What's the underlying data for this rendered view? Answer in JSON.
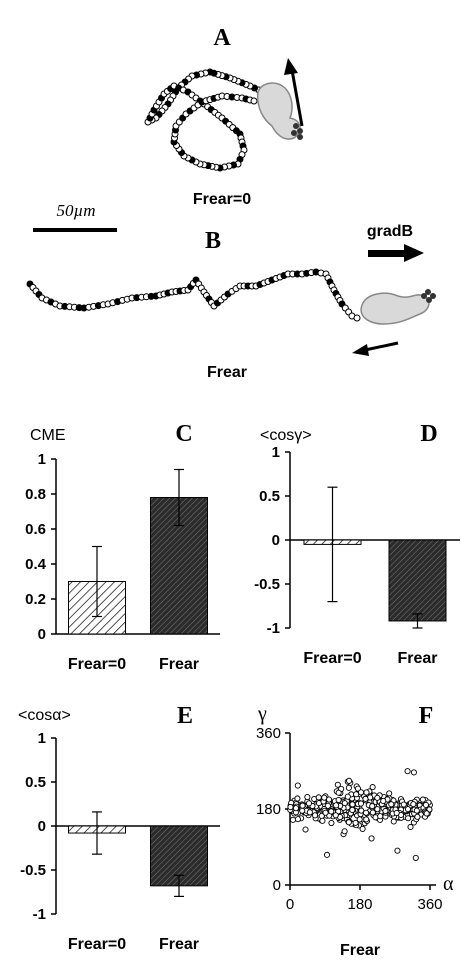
{
  "panel_a": {
    "letter": "A",
    "caption": "Frear=0"
  },
  "scale_bar": {
    "label": "50µm"
  },
  "panel_b": {
    "letter": "B",
    "caption": "Frear",
    "field_label": "gradB"
  },
  "colors": {
    "ink": "#000000",
    "cell_fill": "#d9d9d9",
    "bar_dark": "#262626",
    "bar_light": "#ffffff"
  },
  "chart_data": [
    {
      "panel": "C",
      "type": "bar",
      "ylabel": "CME",
      "categories": [
        "Frear=0",
        "Frear"
      ],
      "values": [
        0.3,
        0.78
      ],
      "errors": [
        0.2,
        0.16
      ],
      "ylim": [
        0,
        1
      ],
      "yticks": [
        "0",
        "0.2",
        "0.4",
        "0.6",
        "0.8",
        "1"
      ],
      "bar_styles": [
        "light-hatch",
        "dark-hatch"
      ]
    },
    {
      "panel": "D",
      "type": "bar",
      "ylabel": "<cosγ>",
      "categories": [
        "Frear=0",
        "Frear"
      ],
      "values": [
        -0.05,
        -0.92
      ],
      "errors": [
        0.65,
        0.08
      ],
      "ylim": [
        -1,
        1
      ],
      "yticks": [
        "1",
        "0.5",
        "0",
        "-0.5",
        "-1"
      ],
      "bar_styles": [
        "light-hatch",
        "dark-hatch"
      ]
    },
    {
      "panel": "E",
      "type": "bar",
      "ylabel": "<cosα>",
      "categories": [
        "Frear=0",
        "Frear"
      ],
      "values": [
        -0.08,
        -0.68
      ],
      "errors": [
        0.24,
        0.12
      ],
      "ylim": [
        -1,
        1
      ],
      "yticks": [
        "1",
        "0.5",
        "0",
        "-0.5",
        "-1"
      ],
      "bar_styles": [
        "light-hatch",
        "dark-hatch"
      ]
    },
    {
      "panel": "F",
      "type": "scatter",
      "xlabel": "α",
      "ylabel": "γ",
      "caption": "Frear",
      "xlim": [
        0,
        360
      ],
      "ylim": [
        0,
        360
      ],
      "xticks": [
        "0",
        "180",
        "360"
      ],
      "yticks": [
        "360",
        "180",
        "0"
      ]
    }
  ]
}
